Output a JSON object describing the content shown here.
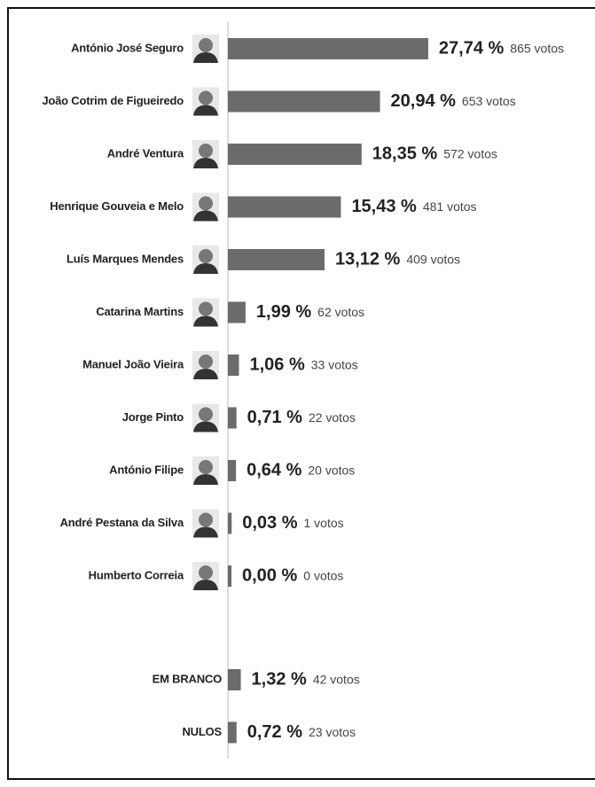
{
  "chart_data": [
    {
      "type": "hbar",
      "categories": [
        "António José Seguro",
        "João Cotrim de Figueiredo",
        "André Ventura",
        "Henrique Gouveia e Melo",
        "Luís Marques Mendes",
        "Catarina Martins",
        "Manuel João Vieira",
        "Jorge Pinto",
        "António Filipe",
        "André Pestana da Silva",
        "Humberto Correia"
      ],
      "values": [
        27.74,
        20.94,
        18.35,
        15.43,
        13.12,
        1.99,
        1.06,
        0.71,
        0.64,
        0.03,
        0.0
      ],
      "value_labels": [
        "27,74 %",
        "20,94 %",
        "18,35 %",
        "15,43 %",
        "13,12 %",
        "1,99 %",
        "1,06 %",
        "0,71 %",
        "0,64 %",
        "0,03 %",
        "0,00 %"
      ],
      "votes": [
        865,
        653,
        572,
        481,
        409,
        62,
        33,
        22,
        20,
        1,
        0
      ],
      "vote_labels": [
        "865 votos",
        "653 votos",
        "572 votos",
        "481 votos",
        "409 votos",
        "62 votos",
        "33 votos",
        "22 votos",
        "20 votos",
        "1 votos",
        "0 votos"
      ],
      "color": "#6b6b6b"
    },
    {
      "type": "hbar",
      "categories": [
        "EM BRANCO",
        "NULOS"
      ],
      "values": [
        1.32,
        0.72
      ],
      "value_labels": [
        "1,32 %",
        "0,72 %"
      ],
      "votes": [
        42,
        23
      ],
      "vote_labels": [
        "42 votos",
        "23 votos"
      ],
      "color": "#6b6b6b"
    }
  ]
}
